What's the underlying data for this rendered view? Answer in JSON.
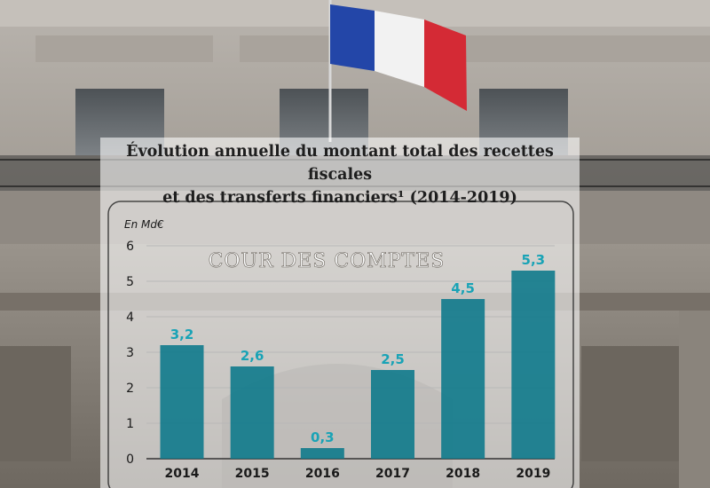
{
  "chart_data": {
    "type": "bar",
    "title_line1": "Évolution annuelle du montant total des recettes fiscales",
    "title_line2": "et des transferts financiers¹ (2014-2019)",
    "unit_label": "En Md€",
    "categories": [
      "2014",
      "2015",
      "2016",
      "2017",
      "2018",
      "2019"
    ],
    "values": [
      3.2,
      2.6,
      0.3,
      2.5,
      4.5,
      5.3
    ],
    "value_labels": [
      "3,2",
      "2,6",
      "0,3",
      "2,5",
      "4,5",
      "5,3"
    ],
    "y_ticks": [
      "0",
      "1",
      "2",
      "3",
      "4",
      "5",
      "6"
    ],
    "ylim": [
      0,
      6
    ],
    "grid": true,
    "bar_color": "#0f7a8c",
    "label_color": "#19a3b6"
  },
  "background": {
    "inscription": "COUR DES COMPTES"
  }
}
